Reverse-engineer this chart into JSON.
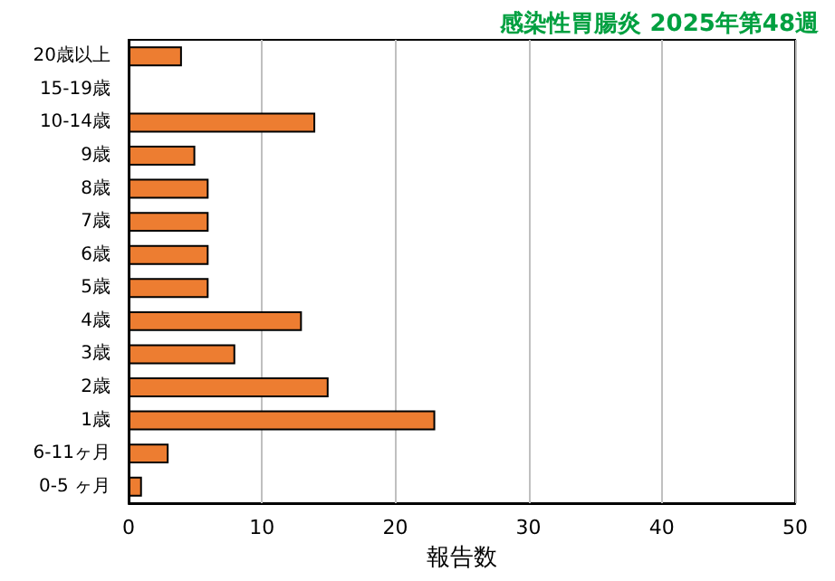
{
  "chart_data": {
    "type": "bar",
    "orientation": "horizontal",
    "title": "感染性胃腸炎 2025年第48週",
    "xlabel": "報告数",
    "categories": [
      "20歳以上",
      "15-19歳",
      "10-14歳",
      "9歳",
      "8歳",
      "7歳",
      "6歳",
      "5歳",
      "4歳",
      "3歳",
      "2歳",
      "1歳",
      "6-11ヶ月",
      "0-5 ヶ月"
    ],
    "values": [
      4,
      0,
      14,
      5,
      6,
      6,
      6,
      6,
      13,
      8,
      15,
      23,
      3,
      1
    ],
    "color": "#ed7d31",
    "xlim": [
      0,
      50
    ],
    "xticks": [
      0,
      10,
      20,
      30,
      40,
      50
    ],
    "grid": "x"
  }
}
